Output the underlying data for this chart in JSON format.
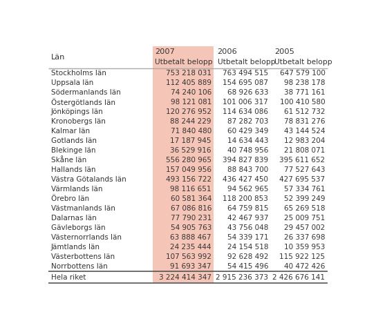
{
  "col_headers": [
    "Län",
    "2007\nUtbetalt belopp",
    "2006\nUtbetalt belopp",
    "2005\nUtbetalt belopp"
  ],
  "rows": [
    [
      "Stockholms län",
      "753 218 031",
      "763 494 515",
      "647 579 100"
    ],
    [
      "Uppsala län",
      "112 405 889",
      "154 695 087",
      "98 238 178"
    ],
    [
      "Södermanlands län",
      "74 240 106",
      "68 926 633",
      "38 771 161"
    ],
    [
      "Östergötlands län",
      "98 121 081",
      "101 006 317",
      "100 410 580"
    ],
    [
      "Jönköpings län",
      "120 276 952",
      "114 634 086",
      "61 512 732"
    ],
    [
      "Kronobergs län",
      "88 244 229",
      "87 282 703",
      "78 831 276"
    ],
    [
      "Kalmar län",
      "71 840 480",
      "60 429 349",
      "43 144 524"
    ],
    [
      "Gotlands län",
      "17 187 945",
      "14 634 443",
      "12 983 204"
    ],
    [
      "Blekinge län",
      "36 529 916",
      "40 748 956",
      "21 808 071"
    ],
    [
      "Skåne län",
      "556 280 965",
      "394 827 839",
      "395 611 652"
    ],
    [
      "Hallands län",
      "157 049 956",
      "88 843 700",
      "77 527 643"
    ],
    [
      "Västra Götalands län",
      "493 156 722",
      "436 427 450",
      "427 695 537"
    ],
    [
      "Värmlands län",
      "98 116 651",
      "94 562 965",
      "57 334 761"
    ],
    [
      "Örebro län",
      "60 581 364",
      "118 200 853",
      "52 399 249"
    ],
    [
      "Västmanlands län",
      "67 086 816",
      "64 759 815",
      "65 269 518"
    ],
    [
      "Dalarnas län",
      "77 790 231",
      "42 467 937",
      "25 009 751"
    ],
    [
      "Gävleborgs län",
      "54 905 763",
      "43 756 048",
      "29 457 002"
    ],
    [
      "Västernorrlands län",
      "63 888 467",
      "54 339 171",
      "26 337 698"
    ],
    [
      "Jämtlands län",
      "24 235 444",
      "24 154 518",
      "10 359 953"
    ],
    [
      "Västerbottens län",
      "107 563 992",
      "92 628 492",
      "115 922 125"
    ],
    [
      "Norrbottens län",
      "91 693 347",
      "54 415 496",
      "40 472 426"
    ]
  ],
  "footer": [
    "Hela riket",
    "3 224 414 347",
    "2 915 236 373",
    "2 426 676 141"
  ],
  "col1_highlight_color": "#f5c5b8",
  "header_line_color": "#aaaaaa",
  "footer_line_color": "#555555",
  "text_color": "#333333",
  "bg_color": "#ffffff",
  "font_size": 7.5,
  "header_font_size": 8.2
}
